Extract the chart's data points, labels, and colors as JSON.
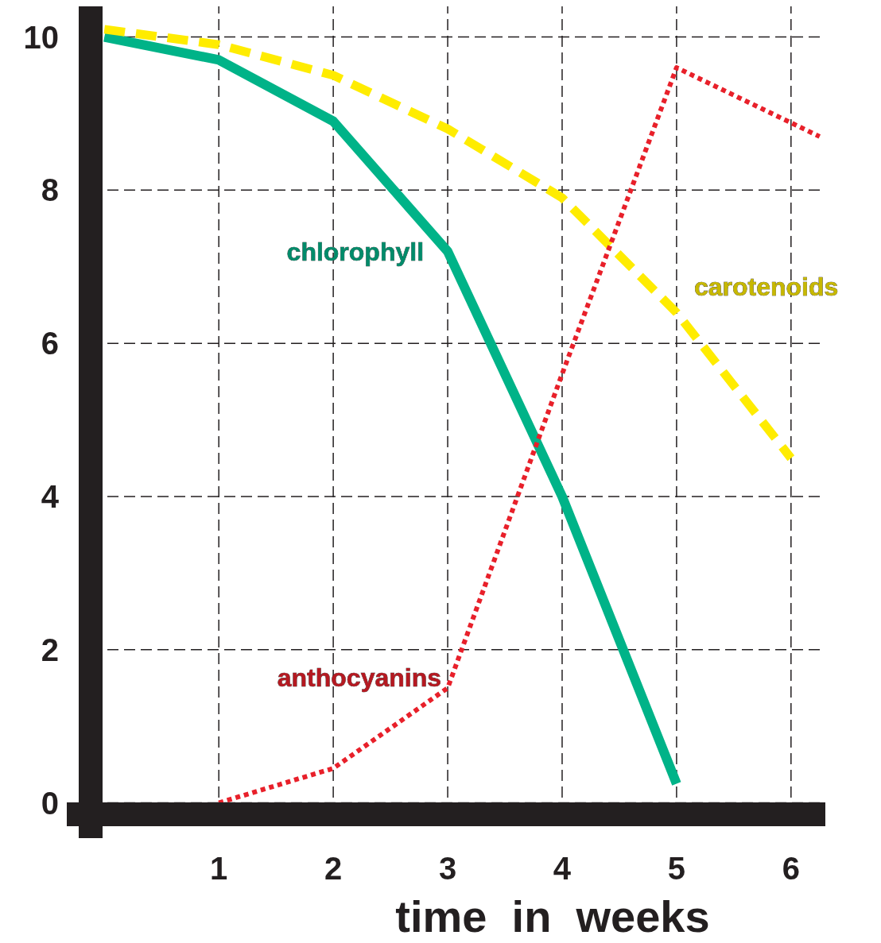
{
  "chart_data": {
    "type": "line",
    "xlabel": "time  in  weeks",
    "xlim": [
      -0.12,
      6.3
    ],
    "ylim": [
      -0.15,
      10.4
    ],
    "xticks": [
      1,
      2,
      3,
      4,
      5,
      6
    ],
    "yticks": [
      0,
      2,
      4,
      6,
      8,
      10
    ],
    "grid": true,
    "marker": "none",
    "series": [
      {
        "name": "chlorophyll",
        "color": "#00b388",
        "line_style": "solid",
        "x": [
          0,
          1,
          2,
          3,
          4,
          5
        ],
        "values": [
          10,
          9.7,
          8.9,
          7.2,
          4.0,
          0.25
        ]
      },
      {
        "name": "carotenoids",
        "color": "#ffec00",
        "line_style": "dashed",
        "x": [
          0,
          1,
          2,
          3,
          4,
          5,
          6
        ],
        "values": [
          10.1,
          9.9,
          9.5,
          8.8,
          7.9,
          6.4,
          4.5
        ]
      },
      {
        "name": "anthocyanins",
        "color": "#e8202a",
        "line_style": "dotted",
        "x": [
          1,
          2,
          3,
          4,
          5,
          6.25
        ],
        "values": [
          0,
          0.45,
          1.5,
          5.6,
          9.6,
          8.7
        ]
      }
    ]
  }
}
